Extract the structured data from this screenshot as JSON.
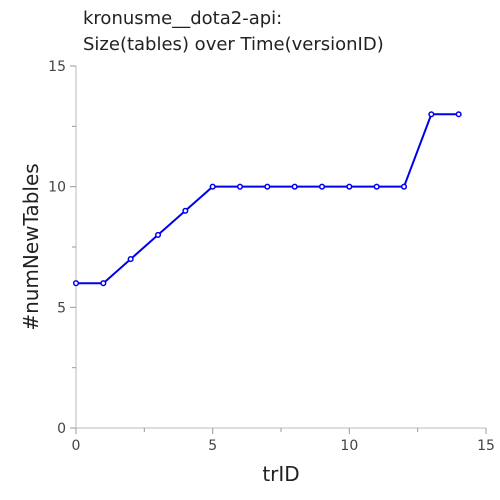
{
  "chart_data": {
    "type": "line",
    "title": "kronusme__dota2-api:",
    "subtitle": "Size(tables) over Time(versionID)",
    "xlabel": "trID",
    "ylabel": "#numNewTables",
    "xlim": [
      0,
      15
    ],
    "ylim": [
      0,
      15
    ],
    "x_ticks": [
      "0",
      "5",
      "10",
      "15"
    ],
    "y_ticks": [
      "0",
      "5",
      "10",
      "15"
    ],
    "grid": false,
    "series": [
      {
        "color": "#0000ee",
        "x": [
          0,
          1,
          2,
          3,
          4,
          5,
          6,
          7,
          8,
          9,
          10,
          11,
          12,
          13,
          14
        ],
        "values": [
          6,
          6,
          7,
          8,
          9,
          10,
          10,
          10,
          10,
          10,
          10,
          10,
          10,
          13,
          13
        ]
      }
    ]
  }
}
